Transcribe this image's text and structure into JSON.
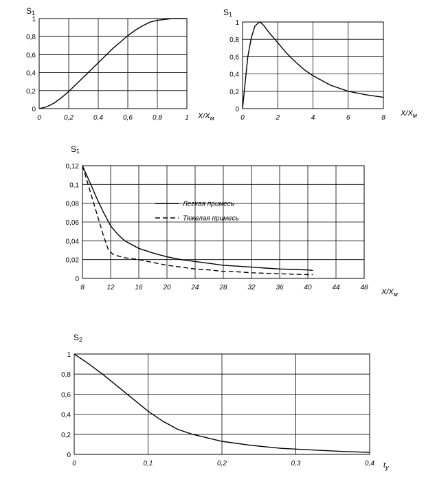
{
  "chart_data": [
    {
      "type": "line",
      "ylabel": "S",
      "ylabel_sub": "1",
      "xlabel": "X/X",
      "xlabel_sub": "м",
      "xlim": [
        0,
        1
      ],
      "ylim": [
        0,
        1
      ],
      "xticks": [
        0,
        0.2,
        0.4,
        0.6,
        0.8,
        1
      ],
      "xtick_labels": [
        "0",
        "0,2",
        "0,4",
        "0,6",
        "0,8",
        "1"
      ],
      "yticks": [
        0,
        0.2,
        0.4,
        0.6,
        0.8,
        1
      ],
      "ytick_labels": [
        "0",
        "0,2",
        "0,4",
        "0,6",
        "0,8",
        "1"
      ],
      "grid": true,
      "series": [
        {
          "style": "solid",
          "x": [
            0,
            0.05,
            0.1,
            0.15,
            0.2,
            0.25,
            0.3,
            0.35,
            0.4,
            0.45,
            0.5,
            0.55,
            0.6,
            0.65,
            0.7,
            0.75,
            0.8,
            0.85,
            0.9,
            0.95,
            1
          ],
          "y": [
            0,
            0.02,
            0.06,
            0.12,
            0.19,
            0.27,
            0.35,
            0.43,
            0.51,
            0.59,
            0.67,
            0.74,
            0.81,
            0.87,
            0.92,
            0.96,
            0.98,
            0.99,
            1,
            1,
            1
          ]
        }
      ]
    },
    {
      "type": "line",
      "ylabel": "S",
      "ylabel_sub": "1",
      "xlabel": "X/X",
      "xlabel_sub": "м",
      "xlim": [
        0,
        8
      ],
      "ylim": [
        0,
        1
      ],
      "xticks": [
        0,
        2,
        4,
        6,
        8
      ],
      "xtick_labels": [
        "0",
        "2",
        "4",
        "6",
        "8"
      ],
      "yticks": [
        0,
        0.2,
        0.4,
        0.6,
        0.8,
        1
      ],
      "ytick_labels": [
        "0",
        "0,2",
        "0,4",
        "0,6",
        "0,8",
        "1"
      ],
      "grid": true,
      "series": [
        {
          "style": "solid",
          "x": [
            0,
            0.15,
            0.3,
            0.5,
            0.7,
            0.9,
            1.0,
            1.2,
            1.5,
            2,
            2.5,
            3,
            3.5,
            4,
            5,
            6,
            7,
            8
          ],
          "y": [
            0,
            0.3,
            0.6,
            0.82,
            0.95,
            0.99,
            1.0,
            0.96,
            0.88,
            0.76,
            0.64,
            0.54,
            0.45,
            0.38,
            0.27,
            0.2,
            0.16,
            0.13
          ]
        }
      ]
    },
    {
      "type": "line",
      "ylabel": "S",
      "ylabel_sub": "1",
      "xlabel": "X/X",
      "xlabel_sub": "м",
      "xlim": [
        8,
        48
      ],
      "ylim": [
        0,
        0.12
      ],
      "xticks": [
        8,
        12,
        16,
        20,
        24,
        28,
        32,
        36,
        40,
        44,
        48
      ],
      "xtick_labels": [
        "8",
        "12",
        "16",
        "20",
        "24",
        "28",
        "32",
        "36",
        "40",
        "44",
        "48"
      ],
      "yticks": [
        0,
        0.02,
        0.04,
        0.06,
        0.08,
        0.1,
        0.12
      ],
      "ytick_labels": [
        "0",
        "0,02",
        "0,04",
        "0,06",
        "0,08",
        "0,1",
        "0,12"
      ],
      "grid": true,
      "legend": "center",
      "series": [
        {
          "name": "Легкая примесь",
          "style": "solid",
          "x": [
            8,
            9,
            10,
            11,
            12,
            13,
            14,
            16,
            18,
            20,
            22,
            24,
            26,
            28,
            30,
            32,
            34,
            36,
            38,
            40,
            40.7
          ],
          "y": [
            0.12,
            0.103,
            0.086,
            0.07,
            0.056,
            0.047,
            0.04,
            0.032,
            0.027,
            0.023,
            0.02,
            0.018,
            0.016,
            0.014,
            0.013,
            0.012,
            0.011,
            0.01,
            0.0095,
            0.009,
            0.0085
          ]
        },
        {
          "name": "Тяжелая примесь",
          "style": "dashed",
          "x": [
            8,
            9,
            10,
            11,
            11.7,
            12.3,
            13,
            14,
            16,
            18,
            20,
            22,
            24,
            26,
            28,
            30,
            32,
            34,
            36,
            38,
            40,
            40.7
          ],
          "y": [
            0.12,
            0.095,
            0.07,
            0.045,
            0.03,
            0.026,
            0.024,
            0.022,
            0.02,
            0.017,
            0.014,
            0.012,
            0.01,
            0.009,
            0.0075,
            0.007,
            0.006,
            0.0055,
            0.005,
            0.0045,
            0.004,
            0.004
          ]
        }
      ]
    },
    {
      "type": "line",
      "ylabel": "S",
      "ylabel_sub": "2",
      "xlabel": "t",
      "xlabel_sub": "у",
      "xlim": [
        0,
        0.4
      ],
      "ylim": [
        0,
        1
      ],
      "xticks": [
        0,
        0.1,
        0.2,
        0.3,
        0.4
      ],
      "xtick_labels": [
        "0",
        "0,1",
        "0,2",
        "0,3",
        "0,4"
      ],
      "yticks": [
        0,
        0.2,
        0.4,
        0.6,
        0.8,
        1
      ],
      "ytick_labels": [
        "0",
        "0,2",
        "0,4",
        "0,6",
        "0,8",
        "1"
      ],
      "grid": true,
      "series": [
        {
          "style": "solid",
          "x": [
            0,
            0.02,
            0.04,
            0.06,
            0.08,
            0.1,
            0.12,
            0.14,
            0.16,
            0.2,
            0.24,
            0.28,
            0.32,
            0.36,
            0.4
          ],
          "y": [
            1,
            0.9,
            0.79,
            0.67,
            0.55,
            0.43,
            0.33,
            0.25,
            0.2,
            0.13,
            0.09,
            0.06,
            0.045,
            0.03,
            0.02
          ]
        }
      ]
    }
  ]
}
